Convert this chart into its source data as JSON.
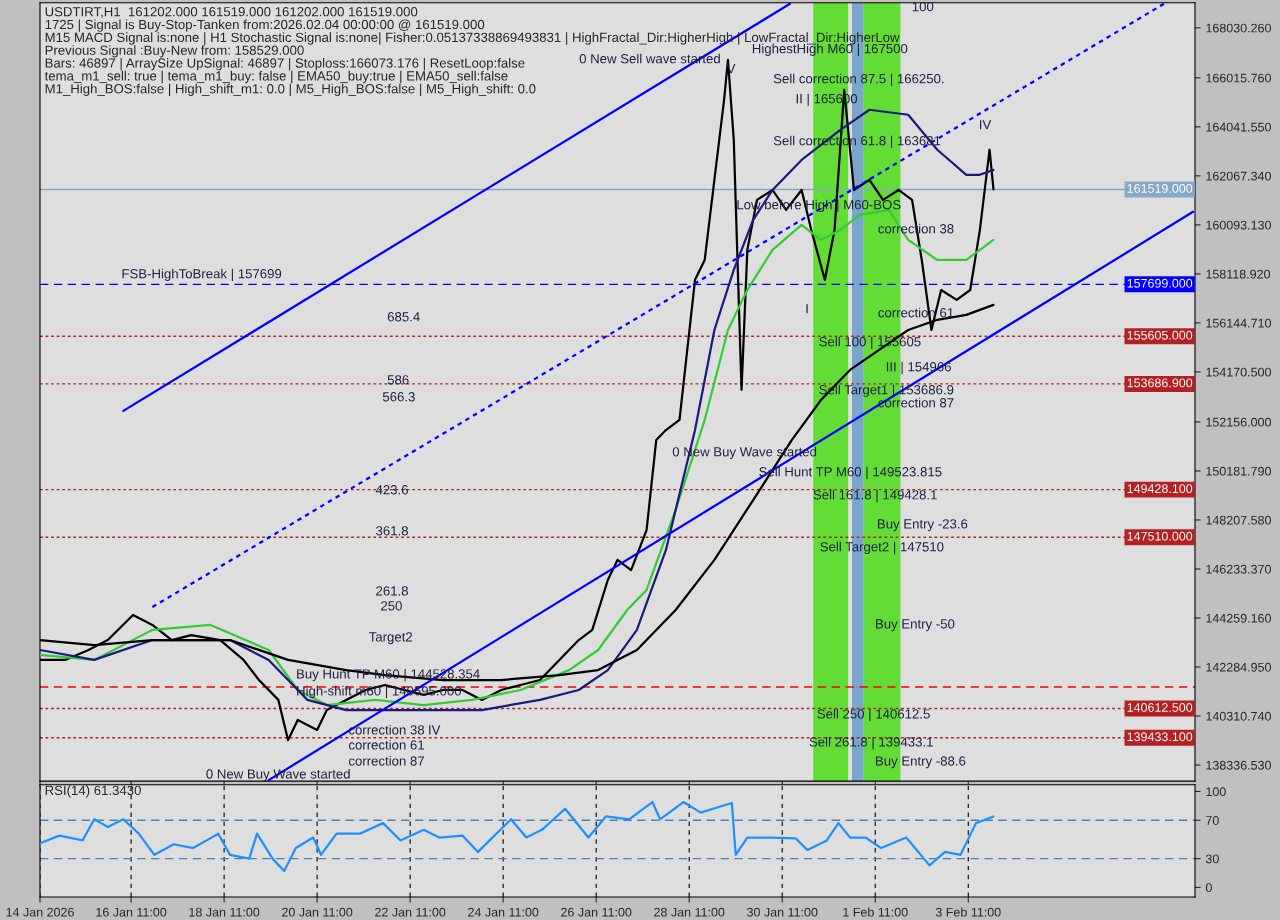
{
  "chart_data": [
    {
      "type": "line",
      "title": "USDTIRT,H1  161202.000 161519.000 161202.000 161519.000",
      "xlim": [
        "2026-01-14T12:00",
        "2026-02-08T08:00"
      ],
      "ylim": [
        137690,
        169040
      ],
      "tick_labels": "y",
      "xticks": [
        {
          "value": "2026-01-14T12:00",
          "label": null
        },
        {
          "value": "2026-01-16T11:00",
          "label": null
        },
        {
          "value": "2026-01-18T11:00",
          "label": null
        },
        {
          "value": "2026-01-20T11:00",
          "label": null
        },
        {
          "value": "2026-01-22T11:00",
          "label": null
        },
        {
          "value": "2026-01-24T11:00",
          "label": null
        },
        {
          "value": "2026-01-26T11:00",
          "label": null
        },
        {
          "value": "2026-01-28T11:00",
          "label": null
        },
        {
          "value": "2026-01-30T11:00",
          "label": null
        },
        {
          "value": "2026-02-01T11:00",
          "label": null
        },
        {
          "value": "2026-02-03T11:00",
          "label": null
        }
      ],
      "yticks": [
        {
          "value": 168030.26,
          "label": "168030.260"
        },
        {
          "value": 166015.76,
          "label": "166015.760"
        },
        {
          "value": 164041.55,
          "label": "164041.550"
        },
        {
          "value": 162067.34,
          "label": "162067.340"
        },
        {
          "value": 160093.13,
          "label": "160093.130"
        },
        {
          "value": 158118.92,
          "label": "158118.920"
        },
        {
          "value": 156144.71,
          "label": "156144.710"
        },
        {
          "value": 154170.5,
          "label": "154170.500"
        },
        {
          "value": 152156,
          "label": "152156.000"
        },
        {
          "value": 150181.79,
          "label": "150181.790"
        },
        {
          "value": 148207.58,
          "label": "148207.580"
        },
        {
          "value": 146233.37,
          "label": "146233.370"
        },
        {
          "value": 144259.16,
          "label": "144259.160"
        },
        {
          "value": 142284.95,
          "label": "142284.950"
        },
        {
          "value": 140310.74,
          "label": "140310.740"
        },
        {
          "value": 138336.53,
          "label": "138336.530"
        }
      ],
      "series": [
        {
          "color": "#000000",
          "x": [
            "2026-01-14T12:00",
            "2026-01-15T01:00",
            "2026-01-15T13:00",
            "2026-01-15T23:00",
            "2026-01-16T12:00",
            "2026-01-16T22:00",
            "2026-01-17T08:00",
            "2026-01-17T18:00",
            "2026-01-18T09:00",
            "2026-01-18T21:00",
            "2026-01-19T05:00",
            "2026-01-19T15:00",
            "2026-01-19T20:00",
            "2026-01-20T01:00",
            "2026-01-20T11:00",
            "2026-01-20T16:00",
            "2026-01-21T02:00",
            "2026-01-21T12:00",
            "2026-01-21T22:00",
            "2026-01-22T08:00",
            "2026-01-22T18:00",
            "2026-01-23T04:00",
            "2026-01-23T14:00",
            "2026-01-24T00:00",
            "2026-01-24T10:00",
            "2026-01-24T20:00",
            "2026-01-25T06:00",
            "2026-01-25T16:00",
            "2026-01-26T02:00",
            "2026-01-26T09:00",
            "2026-01-26T17:00",
            "2026-01-26T22:00",
            "2026-01-27T05:00",
            "2026-01-27T13:00",
            "2026-01-27T18:00",
            "2026-01-27T23:00",
            "2026-01-28T06:00",
            "2026-01-28T14:00",
            "2026-01-28T19:00",
            "2026-01-29T00:00",
            "2026-01-29T05:00",
            "2026-01-29T07:00",
            "2026-01-29T10:00",
            "2026-01-29T14:00",
            "2026-01-29T17:00",
            "2026-01-29T22:00",
            "2026-01-30T06:00",
            "2026-01-30T13:00",
            "2026-01-30T21:00",
            "2026-01-31T02:00",
            "2026-01-31T09:00",
            "2026-01-31T14:00",
            "2026-01-31T19:00",
            "2026-02-01T00:00",
            "2026-02-01T08:00",
            "2026-02-01T15:00",
            "2026-02-01T23:00",
            "2026-02-02T06:00",
            "2026-02-02T11:00",
            "2026-02-02T16:00",
            "2026-02-02T21:00",
            "2026-02-03T05:00",
            "2026-02-03T12:00",
            "2026-02-03T17:00",
            "2026-02-03T22:00",
            "2026-02-04T00:00"
          ],
          "values": [
            142570,
            142570,
            142970,
            143370,
            144380,
            143980,
            143370,
            143570,
            143370,
            142570,
            141760,
            140960,
            139340,
            140150,
            139750,
            140550,
            140960,
            141360,
            141560,
            141360,
            141160,
            141360,
            141360,
            140960,
            141360,
            141560,
            141760,
            142570,
            143370,
            143780,
            145790,
            146600,
            146190,
            147800,
            151430,
            151830,
            152240,
            157880,
            158680,
            161910,
            165130,
            166740,
            163520,
            153450,
            159090,
            161100,
            161500,
            160700,
            161500,
            159890,
            157880,
            159890,
            165530,
            161500,
            161910,
            161100,
            161500,
            161100,
            158680,
            155860,
            157470,
            157070,
            157470,
            159890,
            163120,
            161520
          ]
        },
        {
          "color": "#33cc33",
          "x": [
            "2026-01-14T12:00",
            "2026-01-15T16:00",
            "2026-01-16T22:00",
            "2026-01-18T04:00",
            "2026-01-19T10:00",
            "2026-01-20T01:00",
            "2026-01-20T16:00",
            "2026-01-21T17:00",
            "2026-01-22T18:00",
            "2026-01-23T19:00",
            "2026-01-24T20:00",
            "2026-01-25T21:00",
            "2026-01-26T12:00",
            "2026-01-27T03:00",
            "2026-01-27T13:00",
            "2026-01-28T04:00",
            "2026-01-28T19:00",
            "2026-01-29T07:00",
            "2026-01-29T17:00",
            "2026-01-30T06:00",
            "2026-01-30T21:00",
            "2026-01-31T07:00",
            "2026-01-31T17:00",
            "2026-02-01T03:00",
            "2026-02-01T18:00",
            "2026-02-02T04:00",
            "2026-02-02T19:00",
            "2026-02-03T10:00",
            "2026-02-03T17:00",
            "2026-02-04T00:00"
          ],
          "values": [
            142770,
            142570,
            143780,
            143980,
            142970,
            141360,
            140750,
            140960,
            140750,
            140960,
            141360,
            142160,
            142970,
            144580,
            145390,
            148610,
            152240,
            155860,
            157470,
            159090,
            160090,
            159490,
            159890,
            160500,
            160700,
            159490,
            158680,
            158680,
            159090,
            159490
          ]
        },
        {
          "color": "#1a1a80",
          "x": [
            "2026-01-14T12:00",
            "2026-01-15T16:00",
            "2026-01-16T22:00",
            "2026-01-18T14:00",
            "2026-01-19T10:00",
            "2026-01-20T06:00",
            "2026-01-21T02:00",
            "2026-01-22T18:00",
            "2026-01-24T00:00",
            "2026-01-25T06:00",
            "2026-01-26T02:00",
            "2026-01-26T17:00",
            "2026-01-27T08:00",
            "2026-01-27T23:00",
            "2026-01-28T14:00",
            "2026-01-29T00:00",
            "2026-01-29T10:00",
            "2026-01-29T20:00",
            "2026-01-30T06:00",
            "2026-01-30T21:00",
            "2026-01-31T17:00",
            "2026-02-01T08:00",
            "2026-02-02T04:00",
            "2026-02-02T19:00",
            "2026-02-03T10:00",
            "2026-02-03T17:00",
            "2026-02-04T00:00"
          ],
          "values": [
            142970,
            142570,
            143370,
            143370,
            142570,
            140960,
            140550,
            140550,
            140550,
            140960,
            141360,
            142160,
            143780,
            147000,
            151830,
            155860,
            158280,
            160290,
            161500,
            162710,
            163920,
            164730,
            164530,
            163120,
            162110,
            162110,
            162310
          ]
        },
        {
          "color": "#000000",
          "x": [
            "2026-01-14T12:00",
            "2026-01-15T16:00",
            "2026-01-16T22:00",
            "2026-01-18T14:00",
            "2026-01-19T20:00",
            "2026-01-21T02:00",
            "2026-01-21T22:00",
            "2026-01-23T04:00",
            "2026-01-24T10:00",
            "2026-01-25T16:00",
            "2026-01-26T12:00",
            "2026-01-27T08:00",
            "2026-01-28T04:00",
            "2026-01-29T00:00",
            "2026-01-29T20:00",
            "2026-01-30T16:00",
            "2026-01-31T07:00",
            "2026-01-31T22:00",
            "2026-02-01T13:00",
            "2026-02-02T04:00",
            "2026-02-02T19:00",
            "2026-02-03T10:00",
            "2026-02-03T17:00",
            "2026-02-04T00:00"
          ],
          "values": [
            143370,
            143170,
            143370,
            143370,
            142570,
            142160,
            141960,
            141760,
            141760,
            141960,
            142160,
            142970,
            144580,
            146600,
            149010,
            151430,
            153040,
            154250,
            155060,
            155860,
            156270,
            156470,
            156670,
            156870
          ]
        },
        {
          "color": "#0000ff",
          "x": [
            "2026-01-16T07:00",
            "2026-01-30T15:00"
          ],
          "values": [
            152600,
            169000
          ]
        },
        {
          "color": "#0000ff",
          "x": [
            "2026-01-19T10:00",
            "2026-02-08T07:00"
          ],
          "values": [
            137730,
            160620
          ]
        },
        {
          "color": "#0000ff",
          "line_style": "dotted",
          "x": [
            "2026-01-16T22:00",
            "2026-02-07T16:00"
          ],
          "values": [
            144700,
            169000
          ]
        }
      ],
      "ref_lines": [
        {
          "axis": "y",
          "value": 161519,
          "label": "161519.000",
          "color": "#87a9c8",
          "line_style": "solid"
        },
        {
          "axis": "y",
          "value": 157699,
          "label": "157699.000",
          "color": "#0000ff",
          "line_style": "dashed"
        },
        {
          "axis": "y",
          "value": 155605,
          "label": "155605.000",
          "color": "#b22222",
          "line_style": "dotted"
        },
        {
          "axis": "y",
          "value": 153686.9,
          "label": "153686.900",
          "color": "#b22222",
          "line_style": "dotted"
        },
        {
          "axis": "y",
          "value": 149428.1,
          "label": "149428.100",
          "color": "#b22222",
          "line_style": "dotted"
        },
        {
          "axis": "y",
          "value": 147510,
          "label": "147510.000",
          "color": "#b22222",
          "line_style": "dotted"
        },
        {
          "axis": "y",
          "value": 141480,
          "color": "#ff0000",
          "line_style": "dashed"
        },
        {
          "axis": "y",
          "value": 140612.5,
          "label": "140612.500",
          "color": "#b22222",
          "line_style": "dotted"
        },
        {
          "axis": "y",
          "value": 139433.1,
          "label": "139433.100",
          "color": "#b22222",
          "line_style": "dotted"
        }
      ],
      "bands": [
        {
          "axis": "x",
          "from": "2026-01-31T03:00",
          "to": "2026-01-31T21:00",
          "color": "#55dd22"
        },
        {
          "axis": "x",
          "from": "2026-01-31T23:00",
          "to": "2026-02-01T05:00",
          "color": "#6fa0c8"
        },
        {
          "axis": "x",
          "from": "2026-02-01T05:00",
          "to": "2026-02-02T00:00",
          "color": "#55dd22"
        }
      ],
      "annotations": [
        "1725 | Signal is Buy-Stop-Tanken from:2026.02.04 00:00:00 @ 161519.000",
        "M15 MACD Signal is:none | H1 Stochastic Signal is:none| Fisher:0.05137338869493831 | HighFractal_Dir:HigherHigh | LowFractal_Dir:HigherLow",
        "Previous Signal :Buy-New from: 158529.000",
        "Bars: 46897 | ArraySize UpSignal: 46897 | Stoploss:166073.176 | ResetLoop:false",
        "tema_m1_sell: true | tema_m1_buy: false | EMA50_buy:true | EMA50_sell:false",
        "M1_High_BOS:false | High_shift_m1: 0.0 | M5_High_BOS:false | M5_High_shift: 0.0",
        "FSB-HighToBreak | 157699",
        "685.4",
        "586",
        "566.3",
        "423.6",
        "361.8",
        "261.8",
        "250",
        "Target2",
        "Buy Hunt TP M60 | 144528.354",
        "High-shift m60 | 140695.000",
        "correction 38",
        "IV",
        "correction 61",
        "correction 87",
        "0 New Buy Wave started",
        "0 New Sell wave started",
        "V",
        "HighestHigh M60 | 167500",
        "100",
        "Sell correction 87.5 | 166250.",
        "II | 165600",
        "Sell correction 61.8 | 163681",
        "Low before High | M60-BOS",
        "IV",
        "correction 38",
        "I",
        "correction 61",
        "Sell 100 | 155605",
        "III | 154966",
        "Sell Target1 | 153686.9",
        "correction 87",
        "0 New Buy Wave started",
        "Sell Hunt TP M60 | 149523.815",
        "Sell 161.8 | 149428.1",
        "Buy Entry -23.6",
        "Sell Target2 | 147510",
        "Buy Entry -50",
        "Sell 250 | 140612.5",
        "Sell 261.8 | 139433.1",
        "Buy Entry -88.6"
      ]
    },
    {
      "type": "line",
      "title": "RSI(14) 61.3430",
      "xlim": [
        "2026-01-14T12:00",
        "2026-02-08T08:00"
      ],
      "ylim": [
        -10,
        107
      ],
      "yticks": [
        0,
        30,
        70,
        100
      ],
      "grid": "x",
      "xticks": [
        {
          "value": "2026-01-14T12:00",
          "label": "14 Jan 2026"
        },
        {
          "value": "2026-01-16T11:00",
          "label": "16 Jan 11:00"
        },
        {
          "value": "2026-01-18T11:00",
          "label": "18 Jan 11:00"
        },
        {
          "value": "2026-01-20T11:00",
          "label": "20 Jan 11:00"
        },
        {
          "value": "2026-01-22T11:00",
          "label": "22 Jan 11:00"
        },
        {
          "value": "2026-01-24T11:00",
          "label": "24 Jan 11:00"
        },
        {
          "value": "2026-01-26T11:00",
          "label": "26 Jan 11:00"
        },
        {
          "value": "2026-01-28T11:00",
          "label": "28 Jan 11:00"
        },
        {
          "value": "2026-01-30T11:00",
          "label": "30 Jan 11:00"
        },
        {
          "value": "2026-02-01T11:00",
          "label": "1 Feb 11:00"
        },
        {
          "value": "2026-02-03T11:00",
          "label": "3 Feb 11:00"
        }
      ],
      "series": [
        {
          "color": "#1e90ff",
          "x": [
            "2026-01-14T12:00",
            "2026-01-14T22:00",
            "2026-01-15T10:00",
            "2026-01-15T16:00",
            "2026-01-15T23:00",
            "2026-01-16T07:00",
            "2026-01-16T15:00",
            "2026-01-16T23:00",
            "2026-01-17T09:00",
            "2026-01-17T19:00",
            "2026-01-18T02:00",
            "2026-01-18T08:00",
            "2026-01-18T14:00",
            "2026-01-19T00:00",
            "2026-01-19T04:00",
            "2026-01-19T12:00",
            "2026-01-19T18:00",
            "2026-01-20T00:00",
            "2026-01-20T09:00",
            "2026-01-20T13:00",
            "2026-01-20T21:00",
            "2026-01-21T09:00",
            "2026-01-21T21:00",
            "2026-01-22T06:00",
            "2026-01-22T18:00",
            "2026-01-23T02:00",
            "2026-01-23T14:00",
            "2026-01-23T22:00",
            "2026-01-24T15:00",
            "2026-01-24T23:00",
            "2026-01-25T07:00",
            "2026-01-25T19:00",
            "2026-01-26T07:00",
            "2026-01-26T16:00",
            "2026-01-27T04:00",
            "2026-01-27T16:00",
            "2026-01-27T20:00",
            "2026-01-28T08:00",
            "2026-01-28T17:00",
            "2026-01-29T01:00",
            "2026-01-29T09:00",
            "2026-01-29T11:00",
            "2026-01-29T17:00",
            "2026-01-30T05:00",
            "2026-01-30T18:00",
            "2026-01-31T00:00",
            "2026-01-31T10:00",
            "2026-01-31T16:00",
            "2026-01-31T22:00",
            "2026-02-01T06:00",
            "2026-02-01T14:00",
            "2026-02-02T03:00",
            "2026-02-02T15:00",
            "2026-02-02T23:00",
            "2026-02-03T07:00",
            "2026-02-03T15:00",
            "2026-02-04T00:00"
          ],
          "values": [
            46,
            54,
            49,
            71,
            63,
            71,
            56,
            34,
            45,
            41,
            49,
            56,
            34,
            30,
            56,
            30,
            17,
            41,
            52,
            34,
            56,
            56,
            67,
            49,
            60,
            52,
            54,
            37,
            71,
            52,
            60,
            82,
            52,
            74,
            71,
            89,
            71,
            89,
            78,
            83,
            88,
            34,
            52,
            52,
            51,
            39,
            49,
            67,
            52,
            52,
            41,
            52,
            23,
            37,
            34,
            67,
            74
          ]
        }
      ],
      "ref_lines": [
        {
          "axis": "y",
          "value": 70,
          "color": "#4682b4",
          "line_style": "dashed"
        },
        {
          "axis": "y",
          "value": 30,
          "color": "#4682b4",
          "line_style": "dashed"
        }
      ]
    }
  ]
}
